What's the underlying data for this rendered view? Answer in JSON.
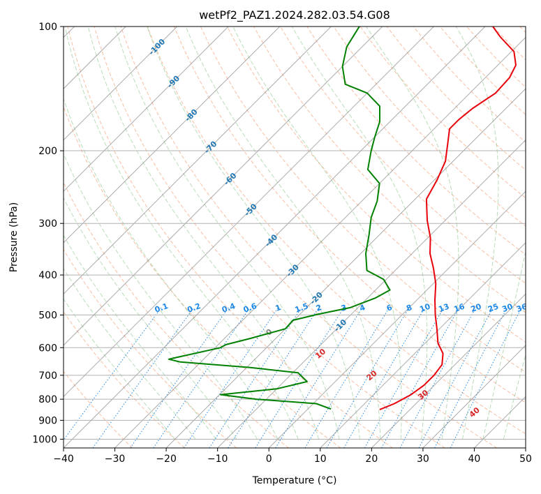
{
  "chart_data": {
    "type": "line",
    "title": "wetPf2_PAZ1.2024.282.03.54.G08",
    "xlabel": "Temperature (°C)",
    "ylabel": "Pressure (hPa)",
    "xlim": [
      -40,
      50
    ],
    "ylim": [
      1050,
      100
    ],
    "y_scale": "log",
    "skew": true,
    "grid": true,
    "x_ticks": [
      -40,
      -30,
      -20,
      -10,
      0,
      10,
      20,
      30,
      40,
      50
    ],
    "x_tick_labels": [
      "−40",
      "−30",
      "−20",
      "−10",
      "0",
      "10",
      "20",
      "30",
      "40",
      "50"
    ],
    "y_ticks": [
      100,
      200,
      300,
      400,
      500,
      600,
      700,
      800,
      900,
      1000
    ],
    "y_tick_labels": [
      "100",
      "200",
      "300",
      "400",
      "500",
      "600",
      "700",
      "800",
      "900",
      "1000"
    ],
    "isotherm_labels": [
      "-100",
      "-90",
      "-80",
      "-70",
      "-60",
      "-50",
      "-40",
      "-30",
      "-20",
      "-10"
    ],
    "isotherm_label_values": [
      -100,
      -90,
      -80,
      -70,
      -60,
      -50,
      -40,
      -30,
      -20,
      -10
    ],
    "isotherm_label_pressures": [
      112,
      136,
      164,
      196,
      234,
      278,
      330,
      390,
      455,
      530
    ],
    "mixing_ratio_labels": [
      "0.1",
      "0.2",
      "0.4",
      "0.6",
      "1",
      "1.5",
      "2",
      "3",
      "4",
      "6",
      "8",
      "10",
      "13",
      "16",
      "20",
      "25",
      "30",
      "36"
    ],
    "mixing_ratio_values": [
      0.1,
      0.2,
      0.4,
      0.6,
      1,
      1.5,
      2,
      3,
      4,
      6,
      8,
      10,
      13,
      16,
      20,
      25,
      30,
      36
    ],
    "moist_adiabat_labels": [
      "0",
      "10",
      "20",
      "30",
      "40"
    ],
    "moist_adiabat_label_values": [
      0,
      10,
      20,
      30,
      40
    ],
    "moist_adiabat_label_pressures": [
      550,
      620,
      700,
      780,
      860
    ],
    "colors": {
      "temperature": "#e8000b",
      "dewpoint": "#008000",
      "dry_adiabat": "#f5a27a",
      "moist_adiabat": "#7fbf7f",
      "mixing_ratio": "#1e88e5",
      "isotherm": "#888888",
      "isotherm_label": "#1f77b4",
      "moist_label": "#d62728"
    },
    "series": [
      {
        "name": "Temperature",
        "points": [
          [
            14.1,
            848
          ],
          [
            15.8,
            820
          ],
          [
            17.3,
            780
          ],
          [
            18.0,
            740
          ],
          [
            18.0,
            700
          ],
          [
            17.5,
            660
          ],
          [
            15.5,
            620
          ],
          [
            12.5,
            585
          ],
          [
            9.5,
            540
          ],
          [
            6.5,
            500
          ],
          [
            3.5,
            460
          ],
          [
            0.5,
            420
          ],
          [
            -3.0,
            385
          ],
          [
            -6.5,
            355
          ],
          [
            -9.5,
            325
          ],
          [
            -13.5,
            295
          ],
          [
            -17.8,
            262
          ],
          [
            -19.5,
            235
          ],
          [
            -21.5,
            212
          ],
          [
            -24.5,
            192
          ],
          [
            -27.0,
            177
          ],
          [
            -27.0,
            168
          ],
          [
            -26.5,
            158
          ],
          [
            -25.0,
            145
          ],
          [
            -25.3,
            133
          ],
          [
            -26.5,
            124
          ],
          [
            -29.5,
            115
          ],
          [
            -35.0,
            106
          ],
          [
            -38.5,
            100
          ]
        ]
      },
      {
        "name": "Dewpoint",
        "points": [
          [
            4.5,
            845
          ],
          [
            0.6,
            820
          ],
          [
            -12.0,
            800
          ],
          [
            -19.8,
            780
          ],
          [
            -10.0,
            755
          ],
          [
            -5.5,
            725
          ],
          [
            -9.0,
            690
          ],
          [
            -19.5,
            670
          ],
          [
            -34.0,
            650
          ],
          [
            -36.8,
            640
          ],
          [
            -29.0,
            600
          ],
          [
            -28.5,
            590
          ],
          [
            -25.0,
            570
          ],
          [
            -20.0,
            540
          ],
          [
            -20.2,
            515
          ],
          [
            -16.5,
            498
          ],
          [
            -11.5,
            480
          ],
          [
            -8.5,
            455
          ],
          [
            -7.2,
            435
          ],
          [
            -10.5,
            410
          ],
          [
            -15.5,
            390
          ],
          [
            -19.0,
            355
          ],
          [
            -22.0,
            320
          ],
          [
            -25.0,
            290
          ],
          [
            -27.0,
            265
          ],
          [
            -30.0,
            240
          ],
          [
            -35.0,
            222
          ],
          [
            -38.0,
            200
          ],
          [
            -40.0,
            185
          ],
          [
            -42.0,
            170
          ],
          [
            -45.0,
            156
          ],
          [
            -50.0,
            145
          ],
          [
            -56.0,
            138
          ],
          [
            -60.0,
            125
          ],
          [
            -63.0,
            112
          ],
          [
            -64.5,
            100
          ]
        ]
      }
    ]
  }
}
